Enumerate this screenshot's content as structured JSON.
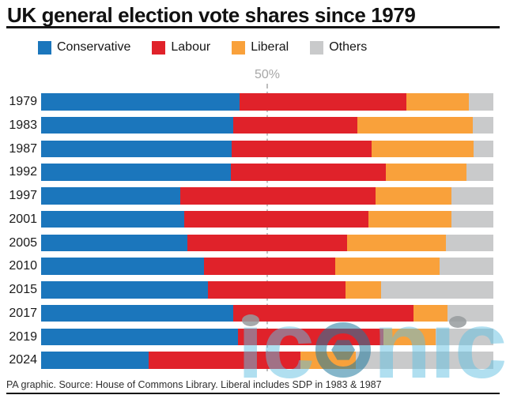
{
  "header": {
    "title": "UK general election vote shares since 1979"
  },
  "legend": [
    {
      "label": "Conservative",
      "color": "#1b76bc"
    },
    {
      "label": "Labour",
      "color": "#e0222a"
    },
    {
      "label": "Liberal",
      "color": "#f9a13b"
    },
    {
      "label": "Others",
      "color": "#c9cacb"
    }
  ],
  "chart_data": {
    "type": "bar",
    "orientation": "horizontal-stacked",
    "title": "UK general election vote shares since 1979",
    "axis_label": "50%",
    "xlim": [
      0,
      100
    ],
    "gridline": {
      "value": 50,
      "style": "dashed"
    },
    "legend_position": "top",
    "categories": [
      "1979",
      "1983",
      "1987",
      "1992",
      "1997",
      "2001",
      "2005",
      "2010",
      "2015",
      "2017",
      "2019",
      "2024"
    ],
    "series": [
      {
        "name": "Conservative",
        "color": "#1b76bc",
        "values": [
          43.9,
          42.4,
          42.2,
          41.9,
          30.7,
          31.7,
          32.4,
          36.1,
          36.9,
          42.4,
          43.6,
          23.7
        ]
      },
      {
        "name": "Labour",
        "color": "#e0222a",
        "values": [
          36.9,
          27.6,
          30.8,
          34.4,
          43.2,
          40.7,
          35.2,
          29.0,
          30.4,
          40.0,
          32.1,
          33.7
        ]
      },
      {
        "name": "Liberal",
        "color": "#f9a13b",
        "values": [
          13.8,
          25.4,
          22.6,
          17.8,
          16.8,
          18.3,
          22.0,
          23.0,
          7.9,
          7.4,
          11.6,
          12.2
        ]
      },
      {
        "name": "Others",
        "color": "#c9cacb",
        "values": [
          5.4,
          4.6,
          4.4,
          5.9,
          9.3,
          9.3,
          10.4,
          11.9,
          24.8,
          10.2,
          12.7,
          30.4
        ]
      }
    ]
  },
  "footer": {
    "source": "PA graphic. Source: House of Commons Library. Liberal includes SDP in 1983 & 1987"
  },
  "watermark": {
    "text": "iconic"
  }
}
